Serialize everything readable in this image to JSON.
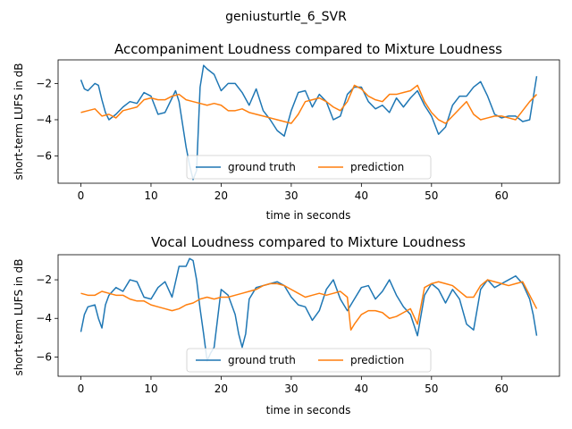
{
  "figure": {
    "suptitle": "geniusturtle_6_SVR"
  },
  "chart_data": [
    {
      "type": "line",
      "title": "Accompaniment Loudness compared to Mixture Loudness",
      "xlabel": "time in seconds",
      "ylabel": "short-term LUFS in dB",
      "xlim": [
        -3.25,
        68.25
      ],
      "ylim": [
        -7.5,
        -0.7
      ],
      "xticks": [
        0,
        10,
        20,
        30,
        40,
        50,
        60
      ],
      "yticks": [
        -6,
        -4,
        -2
      ],
      "legend_position": "lower center",
      "series": [
        {
          "name": "ground truth",
          "color": "#1f77b4",
          "x": [
            0,
            0.5,
            1,
            2,
            2.5,
            3,
            3.5,
            4,
            5,
            6,
            7,
            8,
            9,
            10,
            11,
            12,
            13,
            13.5,
            14,
            15,
            15.5,
            16,
            16.5,
            17,
            17.5,
            18,
            19,
            20,
            21,
            22,
            23,
            24,
            25,
            26,
            27,
            28,
            29,
            30,
            31,
            32,
            33,
            34,
            35,
            36,
            37,
            38,
            39,
            40,
            41,
            42,
            43,
            44,
            45,
            46,
            47,
            48,
            49,
            50,
            51,
            52,
            53,
            54,
            55,
            56,
            57,
            58,
            59,
            60,
            61,
            62,
            63,
            64,
            65
          ],
          "values": [
            -1.8,
            -2.3,
            -2.4,
            -2.0,
            -2.1,
            -2.9,
            -3.6,
            -4.0,
            -3.7,
            -3.3,
            -3.0,
            -3.1,
            -2.5,
            -2.7,
            -3.7,
            -3.6,
            -2.8,
            -2.4,
            -3.0,
            -5.5,
            -6.5,
            -7.3,
            -6.8,
            -2.2,
            -1.0,
            -1.2,
            -1.5,
            -2.4,
            -2.0,
            -2.0,
            -2.5,
            -3.2,
            -2.3,
            -3.5,
            -4.0,
            -4.6,
            -4.9,
            -3.5,
            -2.5,
            -2.4,
            -3.3,
            -2.6,
            -3.0,
            -4.0,
            -3.8,
            -2.6,
            -2.2,
            -2.2,
            -3.0,
            -3.4,
            -3.2,
            -3.6,
            -2.8,
            -3.3,
            -2.8,
            -2.4,
            -3.2,
            -3.8,
            -4.8,
            -4.4,
            -3.2,
            -2.7,
            -2.7,
            -2.2,
            -1.9,
            -2.7,
            -3.7,
            -3.9,
            -3.8,
            -3.8,
            -4.1,
            -4.0,
            -1.6
          ]
        },
        {
          "name": "prediction",
          "color": "#ff7f0e",
          "x": [
            0,
            1,
            2,
            3,
            4,
            5,
            6,
            7,
            8,
            9,
            10,
            11,
            12,
            13,
            14,
            15,
            16,
            17,
            18,
            19,
            20,
            21,
            22,
            23,
            24,
            25,
            26,
            27,
            28,
            29,
            30,
            31,
            32,
            33,
            34,
            35,
            36,
            37,
            38,
            39,
            40,
            41,
            42,
            43,
            44,
            45,
            46,
            47,
            48,
            49,
            50,
            51,
            52,
            53,
            54,
            55,
            56,
            57,
            58,
            59,
            60,
            61,
            62,
            63,
            64,
            65
          ],
          "values": [
            -3.6,
            -3.5,
            -3.4,
            -3.8,
            -3.7,
            -3.9,
            -3.5,
            -3.4,
            -3.3,
            -2.9,
            -2.8,
            -2.9,
            -2.9,
            -2.7,
            -2.6,
            -2.9,
            -3.0,
            -3.1,
            -3.2,
            -3.1,
            -3.2,
            -3.5,
            -3.5,
            -3.4,
            -3.6,
            -3.7,
            -3.8,
            -3.9,
            -4.0,
            -4.1,
            -4.2,
            -3.7,
            -3.0,
            -2.9,
            -2.8,
            -3.0,
            -3.3,
            -3.5,
            -3.0,
            -2.1,
            -2.3,
            -2.7,
            -2.9,
            -3.0,
            -2.6,
            -2.6,
            -2.5,
            -2.4,
            -2.1,
            -3.0,
            -3.6,
            -4.0,
            -4.2,
            -3.8,
            -3.4,
            -3.0,
            -3.7,
            -4.0,
            -3.9,
            -3.8,
            -3.8,
            -3.9,
            -4.0,
            -3.5,
            -3.0,
            -2.6
          ]
        }
      ]
    },
    {
      "type": "line",
      "title": "Vocal Loudness compared to Mixture Loudness",
      "xlabel": "time in seconds",
      "ylabel": "short-term LUFS in dB",
      "xlim": [
        -3.25,
        68.25
      ],
      "ylim": [
        -7.0,
        -0.7
      ],
      "xticks": [
        0,
        10,
        20,
        30,
        40,
        50,
        60
      ],
      "yticks": [
        -6,
        -4,
        -2
      ],
      "legend_position": "lower center",
      "series": [
        {
          "name": "ground truth",
          "color": "#1f77b4",
          "x": [
            0,
            0.5,
            1,
            2,
            2.5,
            3,
            3.5,
            4,
            5,
            6,
            7,
            8,
            9,
            10,
            11,
            12,
            13,
            14,
            15,
            15.5,
            16,
            16.5,
            17,
            17.5,
            18,
            18.5,
            19,
            19.5,
            20,
            21,
            22,
            22.5,
            23,
            23.5,
            24,
            25,
            26,
            27,
            28,
            29,
            30,
            31,
            32,
            33,
            34,
            35,
            36,
            37,
            38,
            39,
            40,
            41,
            42,
            43,
            44,
            45,
            46,
            47,
            48,
            49,
            50,
            51,
            52,
            53,
            54,
            55,
            56,
            57,
            58,
            59,
            60,
            61,
            62,
            63,
            64,
            64.5,
            65
          ],
          "values": [
            -4.7,
            -3.8,
            -3.4,
            -3.3,
            -4.0,
            -4.5,
            -3.3,
            -2.8,
            -2.4,
            -2.6,
            -2.0,
            -2.1,
            -2.9,
            -3.0,
            -2.4,
            -2.1,
            -2.9,
            -1.3,
            -1.3,
            -0.9,
            -1.0,
            -2.0,
            -3.5,
            -4.8,
            -6.2,
            -5.8,
            -5.5,
            -4.0,
            -2.5,
            -2.8,
            -3.8,
            -4.8,
            -5.5,
            -4.8,
            -3.0,
            -2.4,
            -2.3,
            -2.2,
            -2.1,
            -2.3,
            -2.9,
            -3.3,
            -3.4,
            -4.1,
            -3.6,
            -2.5,
            -2.0,
            -3.0,
            -3.6,
            -3.0,
            -2.4,
            -2.3,
            -3.0,
            -2.6,
            -2.0,
            -2.8,
            -3.4,
            -3.8,
            -4.9,
            -2.8,
            -2.2,
            -2.5,
            -3.2,
            -2.5,
            -3.0,
            -4.3,
            -4.6,
            -2.5,
            -2.0,
            -2.4,
            -2.2,
            -2.0,
            -1.8,
            -2.2,
            -3.0,
            -3.8,
            -4.9
          ]
        },
        {
          "name": "prediction",
          "color": "#ff7f0e",
          "x": [
            0,
            1,
            2,
            3,
            4,
            5,
            6,
            7,
            8,
            9,
            10,
            11,
            12,
            13,
            14,
            15,
            16,
            17,
            18,
            19,
            20,
            21,
            22,
            23,
            24,
            25,
            26,
            27,
            28,
            29,
            30,
            31,
            32,
            33,
            34,
            35,
            36,
            37,
            38,
            38.5,
            39,
            40,
            41,
            42,
            43,
            44,
            45,
            46,
            47,
            48,
            49,
            50,
            51,
            52,
            53,
            54,
            55,
            56,
            57,
            58,
            59,
            60,
            61,
            62,
            63,
            64,
            65
          ],
          "values": [
            -2.7,
            -2.8,
            -2.8,
            -2.6,
            -2.7,
            -2.8,
            -2.8,
            -3.0,
            -3.1,
            -3.1,
            -3.3,
            -3.4,
            -3.5,
            -3.6,
            -3.5,
            -3.3,
            -3.2,
            -3.0,
            -2.9,
            -3.0,
            -2.9,
            -2.9,
            -2.8,
            -2.7,
            -2.6,
            -2.5,
            -2.3,
            -2.2,
            -2.2,
            -2.3,
            -2.5,
            -2.7,
            -2.9,
            -2.8,
            -2.7,
            -2.8,
            -2.7,
            -2.6,
            -2.9,
            -4.6,
            -4.3,
            -3.8,
            -3.6,
            -3.6,
            -3.7,
            -4.0,
            -3.9,
            -3.7,
            -3.5,
            -4.3,
            -2.4,
            -2.2,
            -2.1,
            -2.2,
            -2.3,
            -2.6,
            -2.9,
            -2.9,
            -2.3,
            -2.0,
            -2.1,
            -2.2,
            -2.3,
            -2.2,
            -2.1,
            -2.8,
            -3.5
          ]
        }
      ]
    }
  ]
}
